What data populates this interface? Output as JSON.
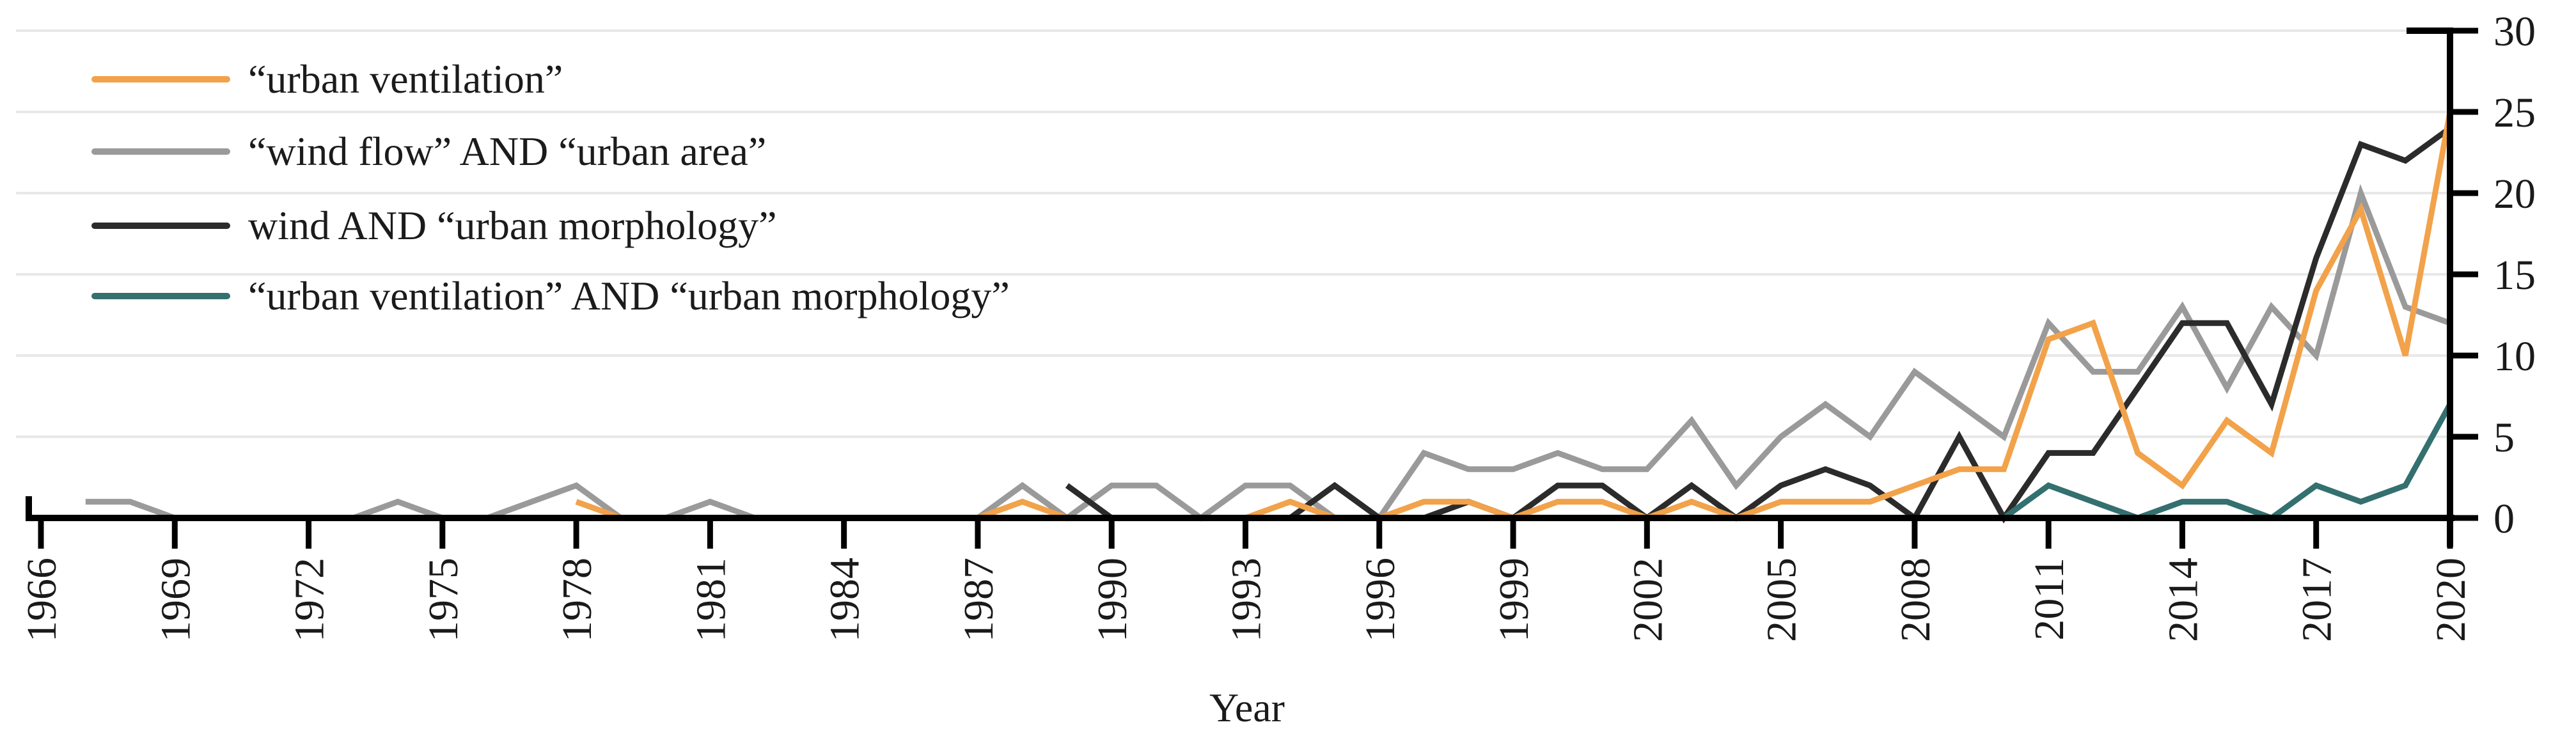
{
  "chart_data": {
    "type": "line",
    "title": "",
    "xlabel": "Year",
    "ylabel": "",
    "ylim": [
      0,
      30
    ],
    "y_ticks": [
      0,
      5,
      10,
      15,
      20,
      25,
      30
    ],
    "x_ticks": [
      1966,
      1969,
      1972,
      1975,
      1978,
      1981,
      1984,
      1987,
      1990,
      1993,
      1996,
      1999,
      2002,
      2005,
      2008,
      2011,
      2014,
      2017,
      2020
    ],
    "grid": "horizontal",
    "legend_position": "top-left",
    "axis_color": "#000000",
    "grid_color": "#e8e8e8",
    "text_color": "#1a1a1a",
    "years": [
      1966,
      1967,
      1968,
      1969,
      1970,
      1971,
      1972,
      1973,
      1974,
      1975,
      1976,
      1977,
      1978,
      1979,
      1980,
      1981,
      1982,
      1983,
      1984,
      1985,
      1986,
      1987,
      1988,
      1989,
      1990,
      1991,
      1992,
      1993,
      1994,
      1995,
      1996,
      1997,
      1998,
      1999,
      2000,
      2001,
      2002,
      2003,
      2004,
      2005,
      2006,
      2007,
      2008,
      2009,
      2010,
      2011,
      2012,
      2013,
      2014,
      2015,
      2016,
      2017,
      2018,
      2019,
      2020
    ],
    "series": [
      {
        "id": "wind-flow-urban-area",
        "name": "“wind flow” AND “urban area”",
        "color": "#9a9a9a",
        "values": [
          null,
          1,
          1,
          0,
          0,
          0,
          0,
          0,
          1,
          0,
          0,
          1,
          2,
          0,
          0,
          1,
          0,
          0,
          0,
          0,
          0,
          0,
          2,
          0,
          2,
          2,
          0,
          2,
          2,
          0,
          0,
          4,
          3,
          3,
          4,
          3,
          3,
          6,
          2,
          5,
          7,
          5,
          9,
          7,
          5,
          12,
          9,
          9,
          13,
          8,
          13,
          10,
          20,
          13,
          12
        ]
      },
      {
        "id": "wind-urban-morphology",
        "name": "wind AND “urban morphology”",
        "color": "#2b2b2b",
        "values": [
          null,
          null,
          null,
          null,
          null,
          null,
          null,
          null,
          null,
          null,
          null,
          null,
          null,
          null,
          null,
          null,
          null,
          null,
          null,
          null,
          null,
          null,
          null,
          2,
          0,
          0,
          0,
          0,
          0,
          2,
          0,
          0,
          1,
          0,
          2,
          2,
          0,
          2,
          0,
          2,
          3,
          2,
          0,
          5,
          0,
          4,
          4,
          8,
          12,
          12,
          7,
          16,
          23,
          22,
          24
        ]
      },
      {
        "id": "urban-ventilation",
        "name": "“urban ventilation”",
        "color": "#f2a24a",
        "values": [
          null,
          null,
          null,
          null,
          null,
          null,
          null,
          null,
          null,
          null,
          null,
          null,
          1,
          0,
          0,
          0,
          0,
          0,
          0,
          0,
          0,
          0,
          1,
          0,
          0,
          0,
          0,
          0,
          1,
          0,
          0,
          1,
          1,
          0,
          1,
          1,
          0,
          1,
          0,
          1,
          1,
          1,
          2,
          3,
          3,
          11,
          12,
          4,
          2,
          6,
          4,
          14,
          19,
          10,
          25
        ]
      },
      {
        "id": "urban-ventilation-urban-morphology",
        "name": "“urban ventilation” AND “urban morphology”",
        "color": "#33706f",
        "values": [
          null,
          0,
          0,
          0,
          0,
          0,
          0,
          0,
          0,
          0,
          0,
          0,
          0,
          0,
          0,
          0,
          0,
          0,
          0,
          0,
          0,
          0,
          0,
          0,
          0,
          0,
          0,
          0,
          0,
          0,
          0,
          0,
          0,
          0,
          0,
          0,
          0,
          0,
          0,
          0,
          0,
          0,
          0,
          0,
          0,
          2,
          1,
          0,
          1,
          1,
          0,
          2,
          1,
          2,
          7
        ]
      }
    ]
  },
  "legend": {
    "items": [
      {
        "label": "“urban ventilation”",
        "color": "#f2a24a"
      },
      {
        "label": "“wind flow” AND “urban area”",
        "color": "#9a9a9a"
      },
      {
        "label": "wind AND “urban morphology”",
        "color": "#2b2b2b"
      },
      {
        "label": "“urban ventilation” AND “urban morphology”",
        "color": "#33706f"
      }
    ]
  }
}
